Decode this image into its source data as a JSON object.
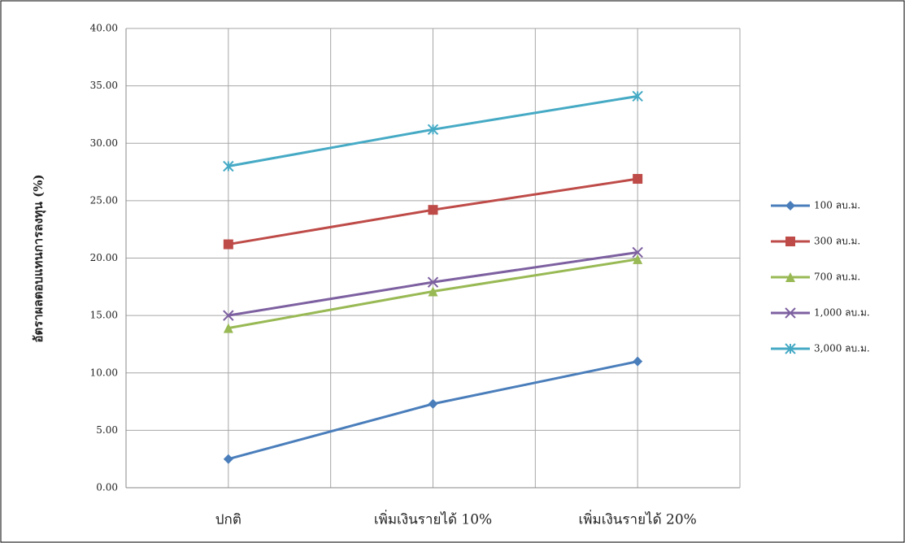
{
  "chart_data": {
    "type": "line",
    "y_label": "อัตราผลตอบแทนการลงทุน (%)",
    "categories": [
      "ปกติ",
      "เพิ่มเงินรายได้ 10%",
      "เพิ่มเงินรายได้ 20%"
    ],
    "series": [
      {
        "name": "100 ลบ.ม.",
        "color": "#4a7ebb",
        "marker": "diamond",
        "values": [
          2.5,
          7.3,
          11.0
        ]
      },
      {
        "name": "300 ลบ.ม.",
        "color": "#be4b48",
        "marker": "square",
        "values": [
          21.2,
          24.2,
          26.9
        ]
      },
      {
        "name": "700 ลบ.ม.",
        "color": "#98b954",
        "marker": "triangle",
        "values": [
          13.9,
          17.1,
          19.9
        ]
      },
      {
        "name": "1,000 ลบ.ม.",
        "color": "#7d60a0",
        "marker": "x",
        "values": [
          15.0,
          17.9,
          20.5
        ]
      },
      {
        "name": "3,000 ลบ.ม.",
        "color": "#46aac5",
        "marker": "star",
        "values": [
          28.0,
          31.2,
          34.1
        ]
      }
    ],
    "ylim": [
      0,
      40
    ],
    "yticks": [
      {
        "value": 0,
        "label": "0.00"
      },
      {
        "value": 5,
        "label": "5.00"
      },
      {
        "value": 10,
        "label": "10.00"
      },
      {
        "value": 15,
        "label": "15.00"
      },
      {
        "value": 20,
        "label": "20.00"
      },
      {
        "value": 25,
        "label": "25.00"
      },
      {
        "value": 30,
        "label": "30.00"
      },
      {
        "value": 35,
        "label": "35.00"
      },
      {
        "value": 40,
        "label": "40.00"
      }
    ],
    "grid": true,
    "legend": "right"
  }
}
